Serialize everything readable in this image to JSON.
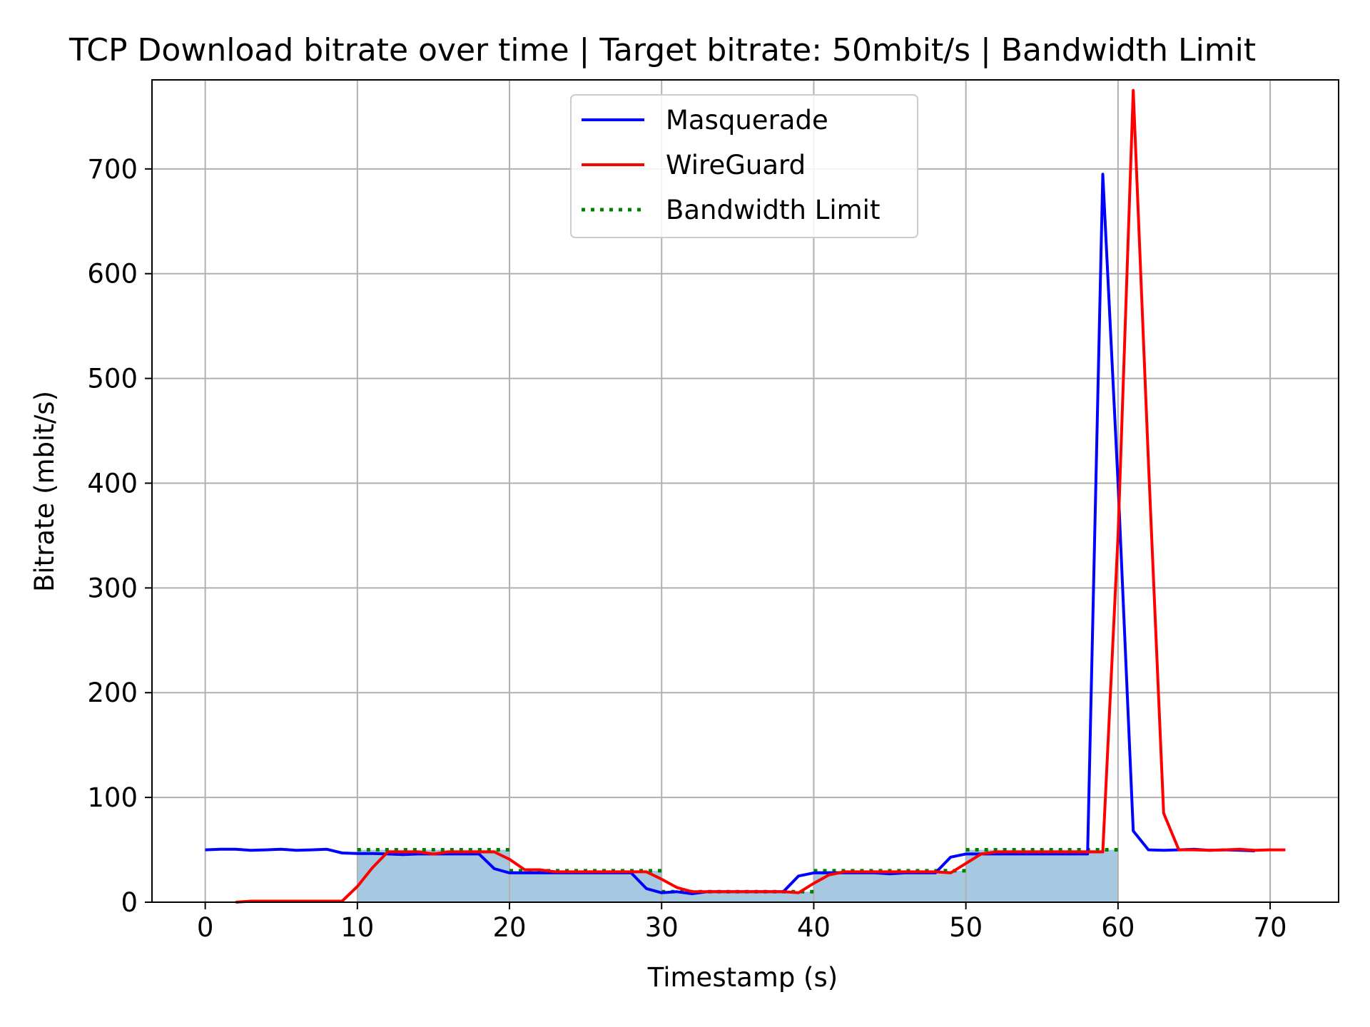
{
  "chart_data": {
    "type": "line",
    "title": "TCP Download bitrate over time | Target bitrate: 50mbit/s | Bandwidth Limit",
    "xlabel": "Timestamp (s)",
    "ylabel": "Bitrate (mbit/s)",
    "xlim": [
      -3.5,
      74.5
    ],
    "ylim": [
      0,
      785
    ],
    "xticks": [
      0,
      10,
      20,
      30,
      40,
      50,
      60,
      70
    ],
    "xtick_labels": [
      "0",
      "10",
      "20",
      "30",
      "40",
      "50",
      "60",
      "70"
    ],
    "yticks": [
      0,
      100,
      200,
      300,
      400,
      500,
      600,
      700
    ],
    "ytick_labels": [
      "0",
      "100",
      "200",
      "300",
      "400",
      "500",
      "600",
      "700"
    ],
    "grid": true,
    "legend_position": "upper-center",
    "series": [
      {
        "name": "Masquerade",
        "color": "#0000ff",
        "style": "solid",
        "x": [
          0,
          1,
          2,
          3,
          4,
          5,
          6,
          7,
          8,
          9,
          10,
          11,
          12,
          13,
          14,
          15,
          16,
          17,
          18,
          19,
          20,
          21,
          22,
          23,
          24,
          25,
          26,
          27,
          28,
          29,
          30,
          31,
          32,
          33,
          34,
          35,
          36,
          37,
          38,
          39,
          40,
          41,
          42,
          43,
          44,
          45,
          46,
          47,
          48,
          49,
          50,
          51,
          52,
          53,
          54,
          55,
          56,
          57,
          58,
          59,
          60,
          61,
          62,
          63,
          64,
          65,
          66,
          67,
          68,
          69
        ],
        "y": [
          50,
          50.5,
          50.5,
          49.5,
          50,
          50.5,
          49.5,
          50,
          50.5,
          47,
          46.5,
          46.5,
          46,
          45.5,
          46,
          46,
          46,
          46,
          46,
          32,
          28,
          28,
          28,
          28,
          28,
          28,
          28,
          28,
          28,
          13,
          9,
          10,
          8,
          10,
          10,
          10,
          10,
          10,
          10,
          25,
          28,
          28,
          28,
          28,
          28,
          27,
          28,
          28,
          28,
          43,
          46,
          46,
          46,
          46,
          46,
          46,
          46,
          46,
          46,
          695,
          400,
          68,
          50,
          49.5,
          50,
          50.5,
          49.5,
          50,
          49.5,
          49
        ]
      },
      {
        "name": "WireGuard",
        "color": "#ff0000",
        "style": "solid",
        "x": [
          2,
          3,
          4,
          5,
          6,
          7,
          8,
          9,
          10,
          11,
          12,
          13,
          14,
          15,
          16,
          17,
          18,
          19,
          20,
          21,
          22,
          23,
          24,
          25,
          26,
          27,
          28,
          29,
          30,
          31,
          32,
          33,
          34,
          35,
          36,
          37,
          38,
          39,
          40,
          41,
          42,
          43,
          44,
          45,
          46,
          47,
          48,
          49,
          50,
          51,
          52,
          53,
          54,
          55,
          56,
          57,
          58,
          59,
          60,
          61,
          62,
          63,
          64,
          65,
          66,
          67,
          68,
          69,
          70,
          71
        ],
        "y": [
          0,
          1,
          1,
          1,
          1,
          1,
          1,
          1,
          15,
          33,
          48,
          48,
          48,
          46,
          48,
          48,
          48,
          48,
          41,
          31,
          31,
          29,
          29,
          29,
          29,
          29,
          29,
          29,
          22,
          14,
          10,
          10,
          10,
          10,
          10,
          10,
          10,
          9,
          18,
          26,
          29,
          29,
          29,
          29,
          29,
          29,
          29,
          28,
          37,
          46,
          48,
          48,
          48,
          48,
          48,
          48,
          48,
          48,
          350,
          775,
          420,
          85,
          50,
          50,
          49.5,
          50,
          50.5,
          49.5,
          50,
          50
        ]
      },
      {
        "name": "Bandwidth Limit",
        "color": "#008000",
        "style": "dotted",
        "segments": [
          {
            "x": [
              10,
              20
            ],
            "y": [
              50,
              50
            ]
          },
          {
            "x": [
              20,
              30
            ],
            "y": [
              30,
              30
            ]
          },
          {
            "x": [
              30,
              40
            ],
            "y": [
              10,
              10
            ]
          },
          {
            "x": [
              40,
              50
            ],
            "y": [
              30,
              30
            ]
          },
          {
            "x": [
              50,
              60
            ],
            "y": [
              50,
              50
            ]
          }
        ]
      }
    ],
    "fill": {
      "color": "#a6c8e0",
      "segments": [
        {
          "x": [
            10,
            20
          ],
          "y": 50
        },
        {
          "x": [
            20,
            30
          ],
          "y": 30
        },
        {
          "x": [
            30,
            40
          ],
          "y": 10
        },
        {
          "x": [
            40,
            50
          ],
          "y": 30
        },
        {
          "x": [
            50,
            60
          ],
          "y": 50
        }
      ]
    }
  }
}
